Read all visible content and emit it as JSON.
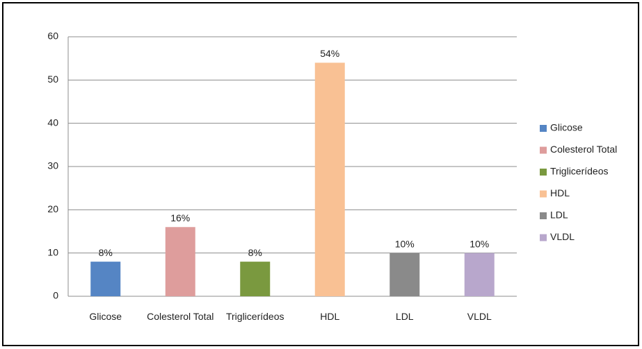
{
  "chart_data": {
    "type": "bar",
    "categories": [
      "Glicose",
      "Colesterol Total",
      "Triglicerídeos",
      "HDL",
      "LDL",
      "VLDL"
    ],
    "values": [
      8,
      16,
      8,
      54,
      10,
      10
    ],
    "value_labels": [
      "8%",
      "16%",
      "8%",
      "54%",
      "10%",
      "10%"
    ],
    "colors": [
      "#5585c4",
      "#de9d9c",
      "#7a993f",
      "#f9c194",
      "#8a8a8a",
      "#b8a7cc"
    ],
    "ylim": [
      0,
      60
    ],
    "yticks": [
      0,
      10,
      20,
      30,
      40,
      50,
      60
    ],
    "grid": true,
    "legend": "right"
  }
}
